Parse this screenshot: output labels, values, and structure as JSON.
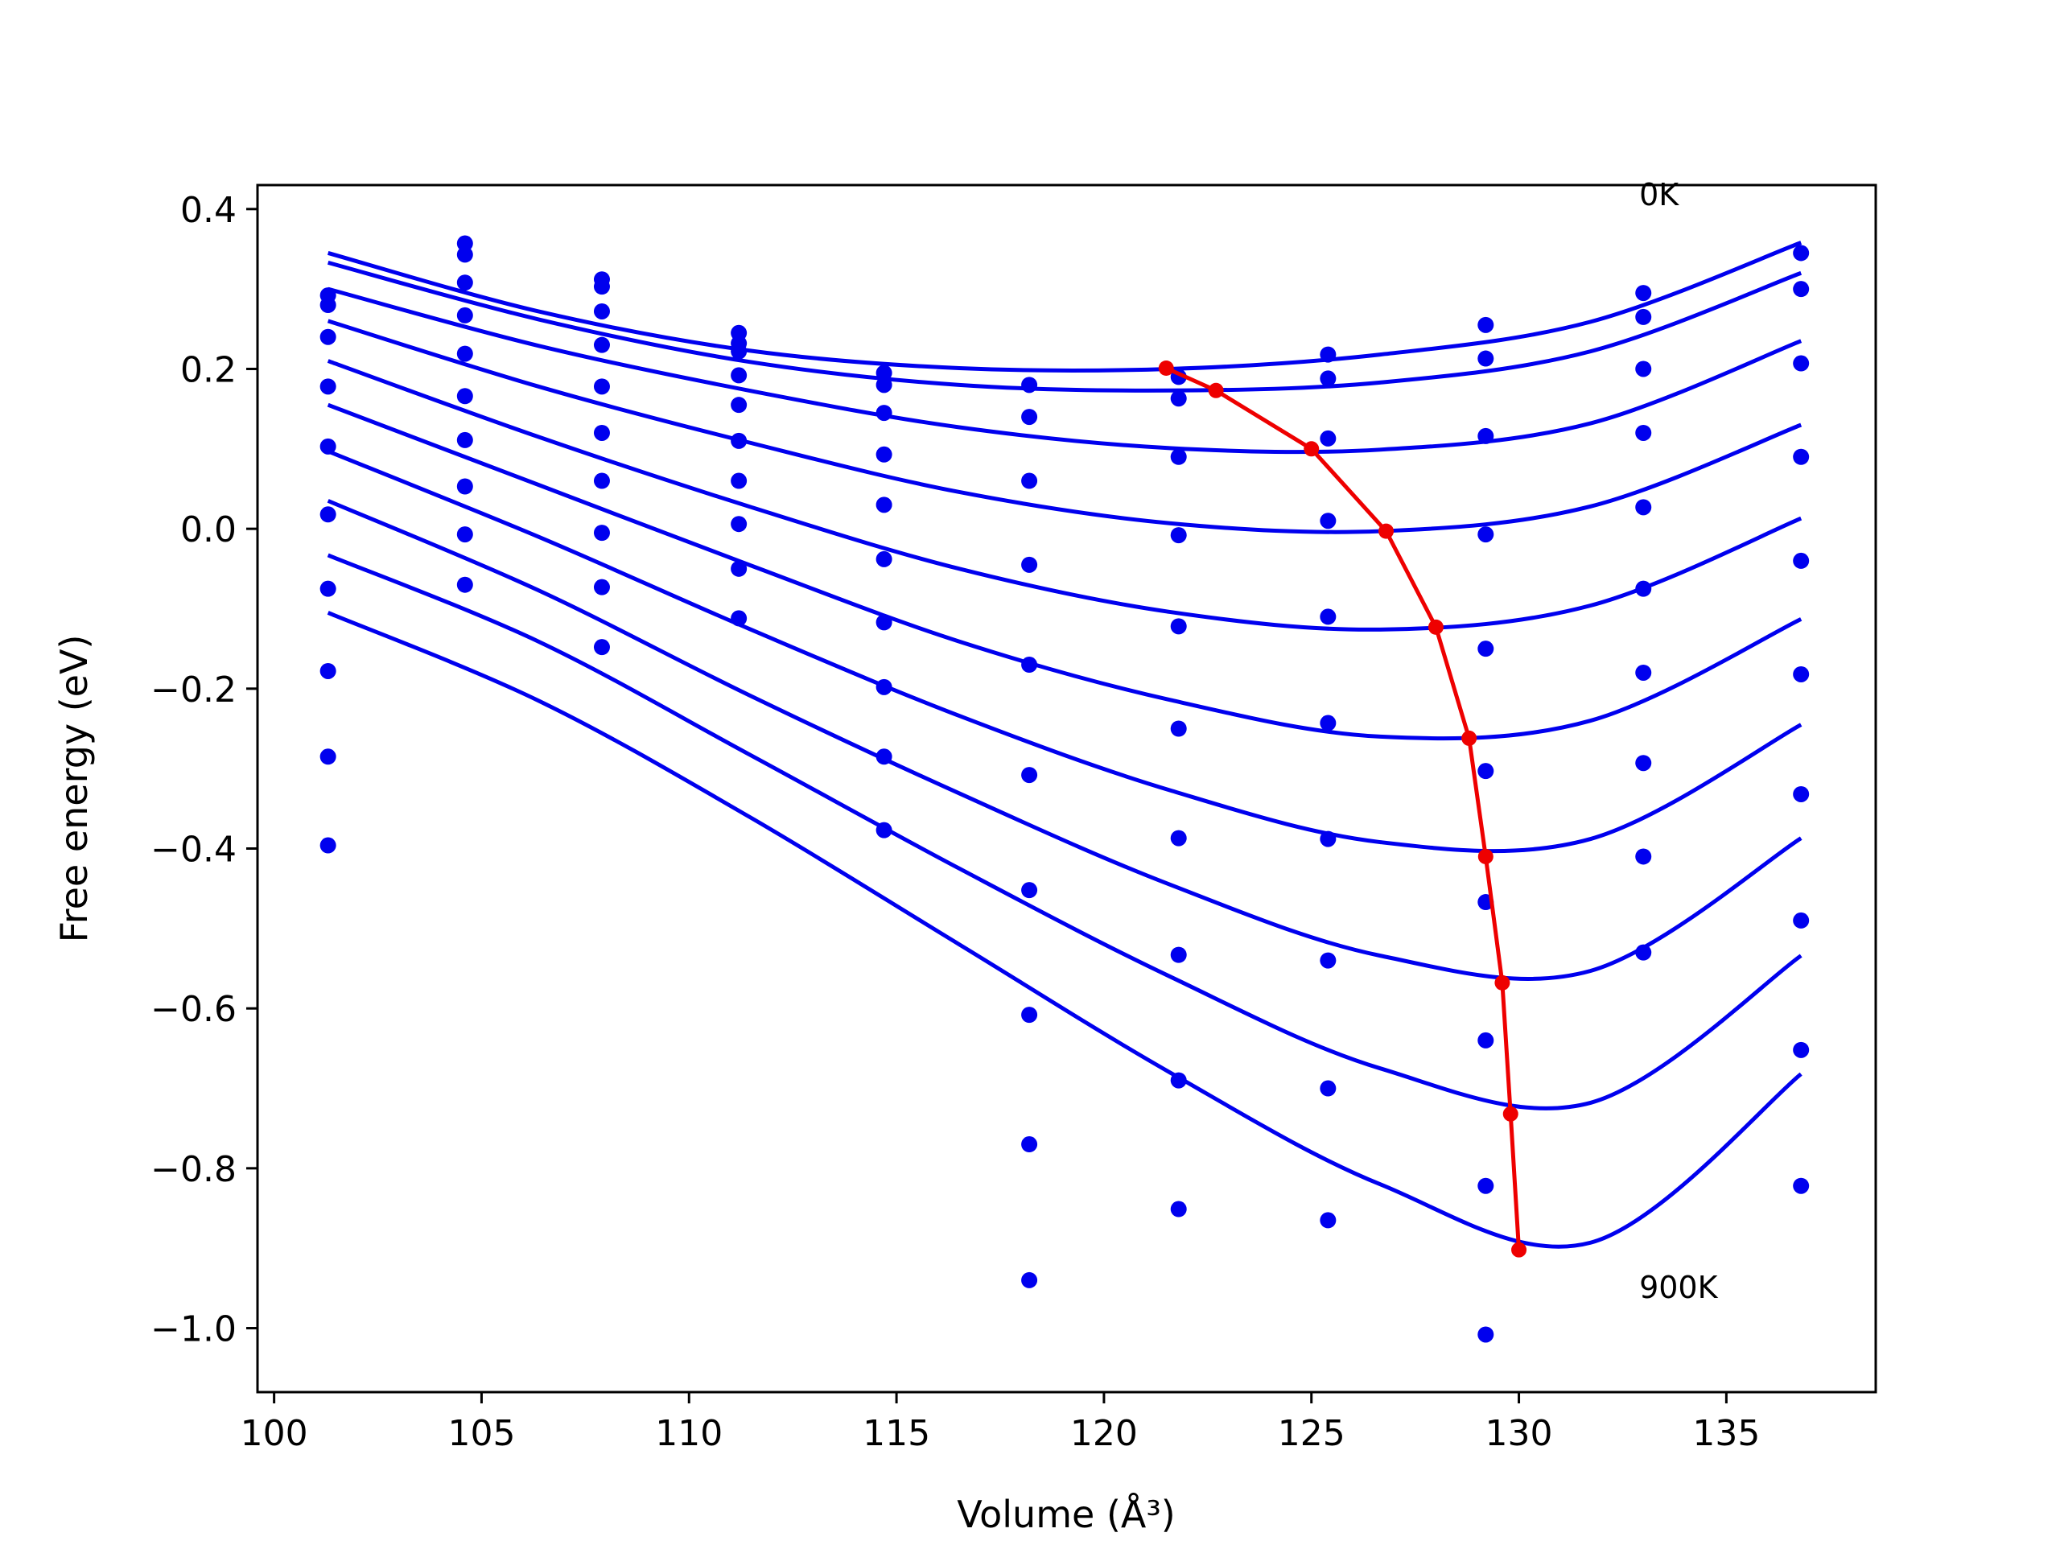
{
  "chart_data": {
    "type": "line",
    "title": "",
    "xlabel": "Volume (Å³)",
    "ylabel": "Free energy (eV)",
    "xlim": [
      99.6,
      138.6
    ],
    "ylim": [
      -1.08,
      0.43
    ],
    "xticks": [
      100,
      105,
      110,
      115,
      120,
      125,
      130,
      135
    ],
    "xtick_labels": [
      "100",
      "105",
      "110",
      "115",
      "120",
      "125",
      "130",
      "135"
    ],
    "yticks": [
      0.4,
      0.2,
      0.0,
      -0.2,
      -0.4,
      -0.6,
      -0.8,
      -1.0
    ],
    "ytick_labels": [
      "0.4",
      "0.2",
      "0.0",
      "−0.2",
      "−0.4",
      "−0.6",
      "−0.8",
      "−1.0"
    ],
    "grid": false,
    "legend": "none",
    "annotations": [
      {
        "text": "0K",
        "x": 132.9,
        "y": 0.405
      },
      {
        "text": "900K",
        "x": 132.9,
        "y": -0.962
      }
    ],
    "fit_x_range": [
      101.3,
      136.8
    ],
    "volumes": [
      101.3,
      104.6,
      107.9,
      111.2,
      114.7,
      118.2,
      121.8,
      125.4,
      129.2,
      133.0,
      136.8
    ],
    "series": [
      {
        "color": "#0000ee",
        "points": [
          0.292,
          0.357,
          0.312,
          0.245,
          0.195,
          0.18,
          0.19,
          0.218,
          0.255,
          0.295,
          0.345
        ],
        "curve": [
          0.345,
          0.272,
          0.223,
          0.201,
          0.2,
          0.218,
          0.259,
          0.358
        ]
      },
      {
        "color": "#0000ee",
        "points": [
          0.28,
          0.343,
          0.303,
          0.232,
          0.18,
          0.14,
          0.163,
          0.188,
          0.213,
          0.265,
          0.3
        ],
        "curve": [
          0.333,
          0.262,
          0.209,
          0.18,
          0.173,
          0.183,
          0.222,
          0.32
        ]
      },
      {
        "color": "#0000ee",
        "points": [
          0.24,
          0.308,
          0.272,
          0.222,
          0.145,
          0.06,
          0.09,
          0.113,
          0.116,
          0.2,
          0.207
        ],
        "curve": [
          0.3,
          0.229,
          0.173,
          0.127,
          0.101,
          0.099,
          0.132,
          0.235
        ]
      },
      {
        "color": "#0000ee",
        "points": [
          0.178,
          0.267,
          0.23,
          0.192,
          0.093,
          -0.045,
          -0.008,
          0.01,
          -0.007,
          0.12,
          0.09
        ],
        "curve": [
          0.26,
          0.178,
          0.108,
          0.046,
          0.007,
          -0.003,
          0.028,
          0.13
        ]
      },
      {
        "color": "#0000ee",
        "points": [
          0.103,
          0.219,
          0.178,
          0.155,
          0.03,
          -0.17,
          -0.122,
          -0.11,
          -0.15,
          0.027,
          -0.04
        ],
        "curve": [
          0.21,
          0.115,
          0.028,
          -0.05,
          -0.104,
          -0.126,
          -0.096,
          0.013
        ]
      },
      {
        "color": "#0000ee",
        "points": [
          0.018,
          0.166,
          0.12,
          0.11,
          -0.038,
          -0.308,
          -0.25,
          -0.243,
          -0.303,
          -0.075,
          -0.182
        ],
        "curve": [
          0.155,
          0.055,
          -0.045,
          -0.141,
          -0.214,
          -0.26,
          -0.24,
          -0.113
        ]
      },
      {
        "color": "#0000ee",
        "points": [
          -0.075,
          0.111,
          0.06,
          0.06,
          -0.117,
          -0.452,
          -0.387,
          -0.388,
          -0.467,
          -0.18,
          -0.332
        ],
        "curve": [
          0.097,
          -0.01,
          -0.125,
          -0.234,
          -0.327,
          -0.392,
          -0.388,
          -0.245
        ]
      },
      {
        "color": "#0000ee",
        "points": [
          -0.178,
          0.053,
          -0.005,
          0.006,
          -0.198,
          -0.608,
          -0.533,
          -0.54,
          -0.64,
          -0.293,
          -0.49
        ],
        "curve": [
          0.035,
          -0.077,
          -0.208,
          -0.331,
          -0.445,
          -0.534,
          -0.553,
          -0.387
        ]
      },
      {
        "color": "#0000ee",
        "points": [
          -0.285,
          -0.007,
          -0.073,
          -0.05,
          -0.285,
          -0.77,
          -0.69,
          -0.7,
          -0.822,
          -0.41,
          -0.652
        ],
        "curve": [
          -0.033,
          -0.141,
          -0.282,
          -0.425,
          -0.56,
          -0.675,
          -0.718,
          -0.534
        ]
      },
      {
        "color": "#0000ee",
        "points": [
          -0.396,
          -0.07,
          -0.148,
          -0.112,
          -0.377,
          -0.94,
          -0.851,
          -0.865,
          -1.008,
          -0.53,
          -0.822
        ],
        "curve": [
          -0.105,
          -0.215,
          -0.36,
          -0.52,
          -0.68,
          -0.82,
          -0.893,
          -0.682
        ]
      }
    ],
    "minimum_path": {
      "color": "#ee0000",
      "x": [
        121.5,
        122.7,
        125.0,
        126.8,
        128.0,
        128.8,
        129.2,
        129.6,
        129.8,
        130.0
      ],
      "y": [
        0.201,
        0.173,
        0.1,
        -0.003,
        -0.123,
        -0.262,
        -0.41,
        -0.568,
        -0.732,
        -0.902
      ]
    }
  }
}
